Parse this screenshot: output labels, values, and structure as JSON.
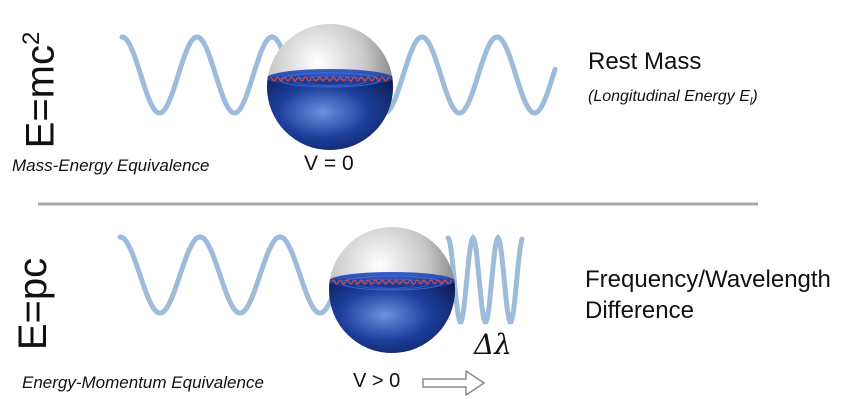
{
  "top": {
    "equation_base": "E=mc",
    "equation_sup": "2",
    "title": "Rest Mass",
    "subtitle_base": "(Longitudinal Energy E",
    "subtitle_sub": "l",
    "subtitle_end": ")",
    "caption": "Mass-Energy Equivalence",
    "velocity": "V = 0"
  },
  "bottom": {
    "equation": "E=pc",
    "title_line1": "Frequency/Wavelength",
    "title_line2": "Difference",
    "delta_label": "Δλ",
    "caption": "Energy-Momentum Equivalence",
    "velocity": "V > 0"
  },
  "colors": {
    "wave": "#9dbbdb",
    "divider": "#a8a8a8",
    "sphere_blue": "#1e3f9e",
    "sphere_grey": "#c8c8c8"
  },
  "icons": {
    "arrow": "right-arrow-icon",
    "sphere": "particle-sphere-icon"
  }
}
